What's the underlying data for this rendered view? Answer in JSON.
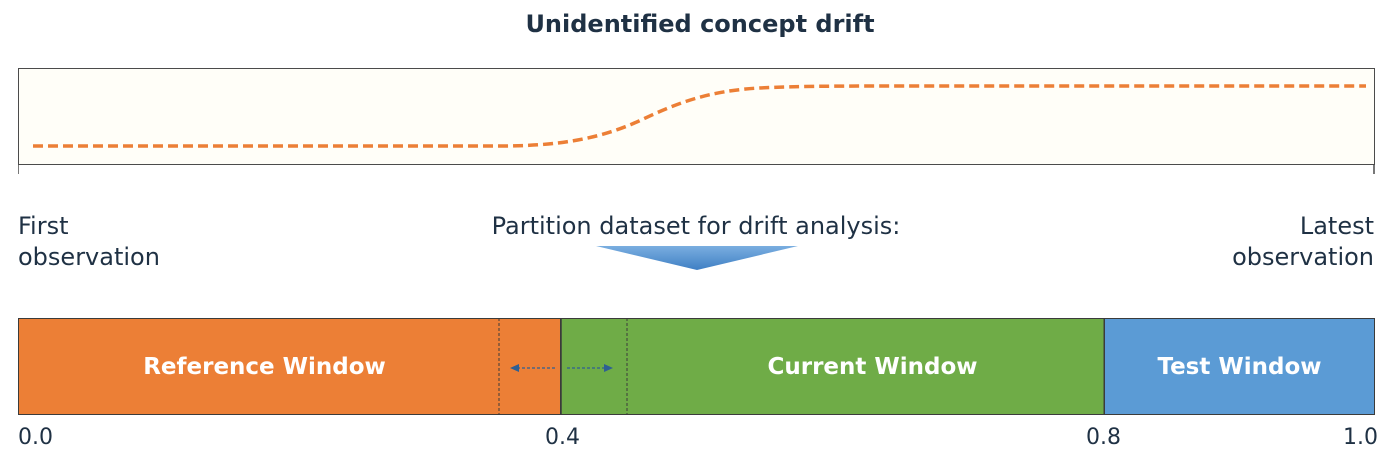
{
  "title": "Unidentified concept drift",
  "labels": {
    "first_line1": "First",
    "first_line2": "observation",
    "partition": "Partition dataset for drift analysis:",
    "latest_line1": "Latest",
    "latest_line2": "observation"
  },
  "windows": {
    "reference": "Reference Window",
    "current": "Current Window",
    "test": "Test Window"
  },
  "ticks": [
    "0.0",
    "0.4",
    "0.8",
    "1.0"
  ],
  "colors": {
    "reference": "#ec7f36",
    "current": "#6fac47",
    "test": "#5b9bd5",
    "drift_line": "#ec7f36",
    "arrow": "#4f86c6"
  }
}
